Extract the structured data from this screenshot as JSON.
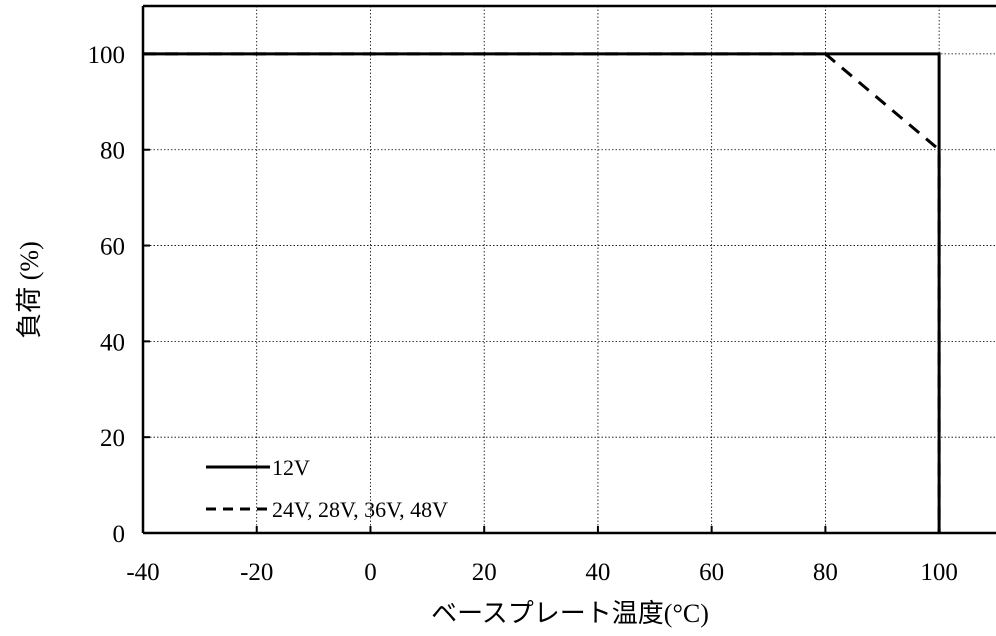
{
  "chart_data": {
    "type": "line",
    "xlabel": "ベースプレート温度(°C)",
    "ylabel": "負荷 (%)",
    "xlim": [
      -40,
      110
    ],
    "ylim": [
      0,
      110
    ],
    "x_ticks": [
      -40,
      -20,
      0,
      20,
      40,
      60,
      80,
      100
    ],
    "y_ticks": [
      0,
      20,
      40,
      60,
      80,
      100
    ],
    "grid": true,
    "legend_position": "bottom-left",
    "series": [
      {
        "name": "12V",
        "style": "solid",
        "color": "#000000",
        "points": [
          [
            -40,
            100
          ],
          [
            100,
            100
          ],
          [
            100,
            0
          ]
        ]
      },
      {
        "name": "24V, 28V, 36V, 48V",
        "style": "dashed",
        "color": "#000000",
        "points": [
          [
            -40,
            100
          ],
          [
            80,
            100
          ],
          [
            100,
            80
          ],
          [
            100,
            0
          ]
        ]
      }
    ]
  }
}
